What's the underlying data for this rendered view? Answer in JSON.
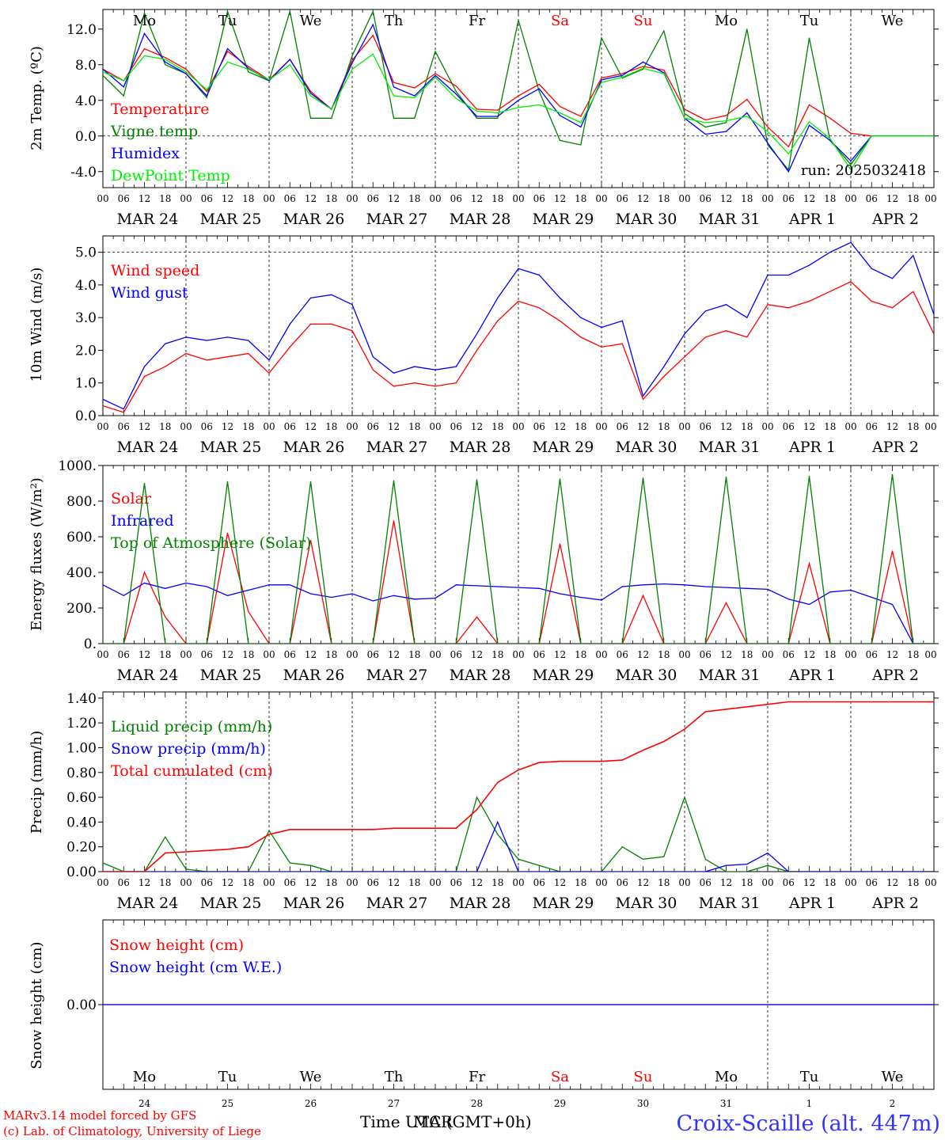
{
  "meta": {
    "model_line": "MARv3.14 model forced by GFS",
    "credit_line": "(c) Lab. of Climatology, University of Liege",
    "location": "Croix-Scaille (alt. 447m)",
    "time_axis_label_a": "Time UTC (GMT+0h)",
    "time_axis_label_b": "MAR",
    "colors": {
      "red": "#ff0000",
      "green": "#008000",
      "blue": "#0000ff",
      "lightgreen": "#00ee00",
      "axis": "#000000"
    }
  },
  "days": {
    "weekdays": [
      "Mo",
      "Tu",
      "We",
      "Th",
      "Fr",
      "Sa",
      "Su",
      "Mo",
      "Tu",
      "We"
    ],
    "weekday_colors": [
      "black",
      "black",
      "black",
      "black",
      "black",
      "red",
      "red",
      "black",
      "black",
      "black"
    ],
    "dates": [
      "MAR 24",
      "MAR 25",
      "MAR 26",
      "MAR 27",
      "MAR 28",
      "MAR 29",
      "MAR 30",
      "MAR 31",
      "APR  1",
      "APR  2"
    ],
    "day_numbers": [
      "24",
      "25",
      "26",
      "27",
      "28",
      "29",
      "30",
      "31",
      "1",
      "2"
    ],
    "hour_ticks": [
      "00",
      "06",
      "12",
      "18"
    ],
    "final_tick": "00"
  },
  "chart_data": [
    {
      "type": "line",
      "ylabel": "2m Temp. (ºC)",
      "yticks": [
        "12.0",
        "8.0",
        "4.0",
        "0.0",
        "-4.0"
      ],
      "ytick_values": [
        12,
        8,
        4,
        0,
        -4
      ],
      "ylim": [
        -5.8,
        14.2
      ],
      "zero_line": 0,
      "annotation": "run: 2025032418",
      "x_unit": "hours since MAR 24 00 UTC",
      "x": [
        0,
        6,
        12,
        18,
        24,
        30,
        36,
        42,
        48,
        54,
        60,
        66,
        72,
        78,
        84,
        90,
        96,
        102,
        108,
        114,
        120,
        126,
        132,
        138,
        144,
        150,
        156,
        162,
        168,
        174,
        180,
        186,
        192,
        198,
        204,
        210,
        216,
        222,
        228,
        234,
        240
      ],
      "series": [
        {
          "name": "Temperature",
          "color": "#ff0000",
          "values": [
            7.5,
            6.2,
            9.8,
            8.8,
            7.5,
            5.0,
            9.5,
            7.8,
            6.3,
            8.6,
            5.0,
            3.0,
            8.5,
            11.3,
            6.0,
            5.4,
            7.0,
            5.6,
            3.0,
            2.9,
            4.5,
            5.8,
            3.3,
            2.2,
            6.5,
            7.0,
            7.8,
            7.4,
            3.0,
            1.8,
            2.3,
            4.1,
            1.0,
            -1.2,
            3.5,
            2.0,
            0.3,
            0,
            0,
            0,
            0
          ]
        },
        {
          "name": "Vigne temp",
          "color": "#008000",
          "values": [
            6.8,
            4.5,
            13.8,
            8.0,
            7.0,
            4.3,
            14.0,
            7.2,
            6.2,
            14.0,
            2.0,
            2.0,
            9.0,
            14.0,
            2.0,
            2.0,
            9.5,
            5.0,
            2.0,
            2.0,
            13.0,
            5.0,
            -0.5,
            -1.0,
            11.0,
            6.5,
            7.5,
            11.8,
            2.5,
            1.0,
            1.5,
            12.0,
            -1.0,
            -3.8,
            11.0,
            -0.5,
            -3.2,
            0,
            0,
            0,
            0
          ]
        },
        {
          "name": "Humidex",
          "color": "#0000ff",
          "values": [
            7.5,
            5.5,
            11.5,
            8.3,
            7.0,
            4.5,
            9.8,
            7.6,
            6.2,
            8.6,
            4.8,
            3.0,
            8.2,
            12.5,
            5.5,
            4.5,
            6.8,
            4.7,
            2.2,
            2.2,
            4.0,
            5.3,
            2.3,
            1.0,
            6.3,
            6.8,
            8.3,
            7.1,
            2.0,
            0.2,
            0.5,
            2.6,
            -0.8,
            -4.0,
            1.2,
            -0.5,
            -2.8,
            0,
            0,
            0,
            0
          ]
        },
        {
          "name": "DewPoint Temp",
          "color": "#00ee00",
          "values": [
            7.2,
            6.2,
            9.0,
            8.6,
            7.2,
            5.2,
            8.3,
            7.5,
            6.3,
            8.0,
            4.5,
            3.0,
            7.5,
            9.2,
            4.5,
            4.3,
            6.6,
            4.2,
            2.8,
            2.6,
            3.2,
            3.5,
            2.6,
            1.5,
            6.0,
            6.6,
            7.6,
            7.0,
            2.0,
            1.5,
            1.7,
            2.2,
            0.5,
            -2.0,
            1.6,
            -0.3,
            -3.8,
            0,
            0,
            0,
            0
          ]
        }
      ]
    },
    {
      "type": "line",
      "ylabel": "10m Wind (m/s)",
      "yticks": [
        "5.0",
        "4.0",
        "3.0",
        "2.0",
        "1.0",
        "0.0"
      ],
      "ytick_values": [
        5,
        4,
        3,
        2,
        1,
        0
      ],
      "ylim": [
        0,
        5.5
      ],
      "ref_line": 5.0,
      "x_unit": "hours since MAR 24 00 UTC",
      "x": [
        0,
        6,
        12,
        18,
        24,
        30,
        36,
        42,
        48,
        54,
        60,
        66,
        72,
        78,
        84,
        90,
        96,
        102,
        108,
        114,
        120,
        126,
        132,
        138,
        144,
        150,
        156,
        162,
        168,
        174,
        180,
        186,
        192,
        198,
        204,
        210,
        216,
        222,
        228,
        234,
        240
      ],
      "series": [
        {
          "name": "Wind speed",
          "color": "#ff0000",
          "values": [
            0.3,
            0.1,
            1.2,
            1.5,
            1.9,
            1.7,
            1.8,
            1.9,
            1.3,
            2.1,
            2.8,
            2.8,
            2.6,
            1.4,
            0.9,
            1.0,
            0.9,
            1.0,
            2.0,
            2.9,
            3.5,
            3.3,
            2.9,
            2.4,
            2.1,
            2.2,
            0.5,
            1.2,
            1.8,
            2.4,
            2.6,
            2.4,
            3.4,
            3.3,
            3.5,
            3.8,
            4.1,
            3.5,
            3.3,
            3.8,
            2.5
          ]
        },
        {
          "name": "Wind gust",
          "color": "#0000ff",
          "values": [
            0.5,
            0.2,
            1.5,
            2.2,
            2.4,
            2.3,
            2.4,
            2.3,
            1.7,
            2.8,
            3.6,
            3.7,
            3.4,
            1.8,
            1.3,
            1.5,
            1.4,
            1.5,
            2.5,
            3.6,
            4.5,
            4.3,
            3.6,
            3.0,
            2.7,
            2.9,
            0.6,
            1.5,
            2.5,
            3.2,
            3.4,
            3.0,
            4.3,
            4.3,
            4.6,
            5.0,
            5.3,
            4.5,
            4.2,
            4.9,
            3.1
          ]
        }
      ]
    },
    {
      "type": "line",
      "ylabel": "Energy fluxes (W/m²)",
      "yticks": [
        "1000.",
        "800.",
        "600.",
        "400.",
        "200.",
        "0."
      ],
      "ytick_values": [
        1000,
        800,
        600,
        400,
        200,
        0
      ],
      "ylim": [
        0,
        1000
      ],
      "x_unit": "hours since MAR 24 00 UTC",
      "x": [
        0,
        6,
        12,
        18,
        24,
        30,
        36,
        42,
        48,
        54,
        60,
        66,
        72,
        78,
        84,
        90,
        96,
        102,
        108,
        114,
        120,
        126,
        132,
        138,
        144,
        150,
        156,
        162,
        168,
        174,
        180,
        186,
        192,
        198,
        204,
        210,
        216,
        222,
        228,
        234,
        240
      ],
      "series": [
        {
          "name": "Solar",
          "color": "#ff0000",
          "values": [
            0,
            0,
            400,
            150,
            0,
            0,
            620,
            180,
            0,
            0,
            580,
            0,
            0,
            0,
            690,
            0,
            0,
            0,
            150,
            0,
            0,
            0,
            560,
            0,
            0,
            0,
            270,
            0,
            0,
            0,
            230,
            0,
            0,
            0,
            450,
            0,
            0,
            0,
            520,
            0,
            0
          ]
        },
        {
          "name": "Infrared",
          "color": "#0000ff",
          "values": [
            330,
            270,
            340,
            310,
            340,
            320,
            270,
            300,
            330,
            330,
            280,
            260,
            280,
            240,
            270,
            250,
            255,
            330,
            325,
            320,
            315,
            310,
            280,
            260,
            245,
            320,
            330,
            335,
            330,
            320,
            315,
            310,
            305,
            250,
            220,
            290,
            300,
            260,
            220,
            0,
            0
          ]
        },
        {
          "name": "Top of Atmosphere (Solar)",
          "color": "#008000",
          "values": [
            0,
            0,
            900,
            0,
            0,
            0,
            910,
            0,
            0,
            0,
            910,
            0,
            0,
            0,
            915,
            0,
            0,
            0,
            920,
            0,
            0,
            0,
            925,
            0,
            0,
            0,
            930,
            0,
            0,
            0,
            935,
            0,
            0,
            0,
            940,
            0,
            0,
            0,
            950,
            0,
            0
          ]
        }
      ]
    },
    {
      "type": "line",
      "ylabel": "Precip (mm/h)",
      "yticks": [
        "1.40",
        "1.20",
        "1.00",
        "0.80",
        "0.60",
        "0.40",
        "0.20",
        "0.00"
      ],
      "ytick_values": [
        1.4,
        1.2,
        1.0,
        0.8,
        0.6,
        0.4,
        0.2,
        0.0
      ],
      "ylim": [
        0,
        1.45
      ],
      "x_unit": "hours since MAR 24 00 UTC",
      "x": [
        0,
        6,
        12,
        18,
        24,
        30,
        36,
        42,
        48,
        54,
        60,
        66,
        72,
        78,
        84,
        90,
        96,
        102,
        108,
        114,
        120,
        126,
        132,
        138,
        144,
        150,
        156,
        162,
        168,
        174,
        180,
        186,
        192,
        198,
        204,
        210,
        216,
        222,
        228,
        234,
        240
      ],
      "series": [
        {
          "name": "Liquid precip (mm/h)",
          "color": "#008000",
          "values": [
            0.07,
            0,
            0,
            0.28,
            0.02,
            0,
            0,
            0,
            0.33,
            0.07,
            0.05,
            0,
            0,
            0,
            0,
            0,
            0,
            0,
            0.6,
            0.3,
            0.1,
            0.05,
            0,
            0,
            0,
            0.2,
            0.1,
            0.12,
            0.6,
            0.1,
            0,
            0,
            0.05,
            0,
            0,
            0,
            0,
            0,
            0,
            0,
            0
          ]
        },
        {
          "name": "Snow precip (mm/h)",
          "color": "#0000ff",
          "values": [
            0,
            0,
            0,
            0,
            0,
            0,
            0,
            0,
            0,
            0,
            0,
            0,
            0,
            0,
            0,
            0,
            0,
            0,
            0,
            0.4,
            0,
            0,
            0,
            0,
            0,
            0,
            0,
            0,
            0,
            0,
            0.05,
            0.06,
            0.15,
            0,
            0,
            0,
            0,
            0,
            0,
            0,
            0
          ]
        },
        {
          "name": "Total cumulated (cm)",
          "color": "#ff0000",
          "values": [
            0,
            0,
            0,
            0.15,
            0.16,
            0.17,
            0.18,
            0.2,
            0.3,
            0.34,
            0.34,
            0.34,
            0.34,
            0.34,
            0.35,
            0.35,
            0.35,
            0.35,
            0.5,
            0.72,
            0.82,
            0.88,
            0.89,
            0.89,
            0.89,
            0.9,
            0.98,
            1.05,
            1.15,
            1.29,
            1.31,
            1.33,
            1.35,
            1.37,
            1.37,
            1.37,
            1.37,
            1.37,
            1.37,
            1.37,
            1.37
          ]
        }
      ]
    },
    {
      "type": "line",
      "ylabel": "Snow height (cm)",
      "yticks": [
        "0.00"
      ],
      "ytick_values": [
        0
      ],
      "ylim": [
        -1,
        1
      ],
      "x_unit": "hours since MAR 24 00 UTC",
      "x": [
        0,
        240
      ],
      "series": [
        {
          "name": "Snow height (cm)",
          "color": "#ff0000",
          "values": [
            0,
            0
          ]
        },
        {
          "name": "Snow height (cm W.E.)",
          "color": "#0000ff",
          "values": [
            0,
            0
          ]
        }
      ]
    }
  ]
}
